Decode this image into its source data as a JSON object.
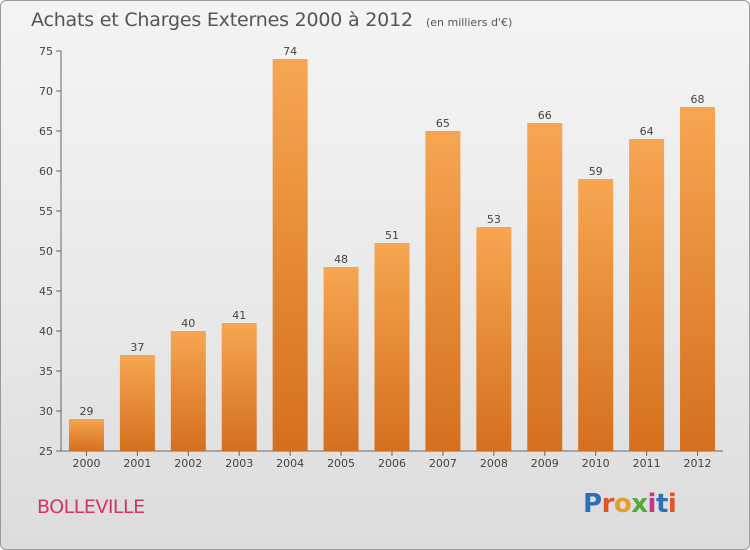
{
  "title": "Achats et Charges Externes 2000 à 2012",
  "unit": "(en milliers d'€)",
  "commune": "BOLLEVILLE",
  "logo": {
    "text": "Proxiti",
    "letter_colors": [
      "#2f6fb5",
      "#e0542a",
      "#e0a12a",
      "#58a83c",
      "#c2378a",
      "#2f6fb5",
      "#e0542a"
    ]
  },
  "colors": {
    "bar_light": "#f6a651",
    "bar_dark": "#d56f1e",
    "title": "#555555",
    "commune": "#d0346a"
  },
  "chart_data": {
    "type": "bar",
    "title": "Achats et Charges Externes 2000 à 2012",
    "subtitle": "(en milliers d'€)",
    "categories": [
      "2000",
      "2001",
      "2002",
      "2003",
      "2004",
      "2005",
      "2006",
      "2007",
      "2008",
      "2009",
      "2010",
      "2011",
      "2012"
    ],
    "values": [
      29,
      37,
      40,
      41,
      74,
      48,
      51,
      65,
      53,
      66,
      59,
      64,
      68
    ],
    "data_labels": [
      "29",
      "37",
      "40",
      "41",
      "74",
      "48",
      "51",
      "65",
      "53",
      "66",
      "59",
      "64",
      "68"
    ],
    "ylim": [
      25,
      75
    ],
    "yticks": [
      25,
      30,
      35,
      40,
      45,
      50,
      55,
      60,
      65,
      70,
      75
    ],
    "ytick_labels": [
      "25",
      "30",
      "35",
      "40",
      "45",
      "50",
      "55",
      "60",
      "65",
      "70",
      "75"
    ],
    "grid": false,
    "xlabel": "",
    "ylabel": ""
  }
}
